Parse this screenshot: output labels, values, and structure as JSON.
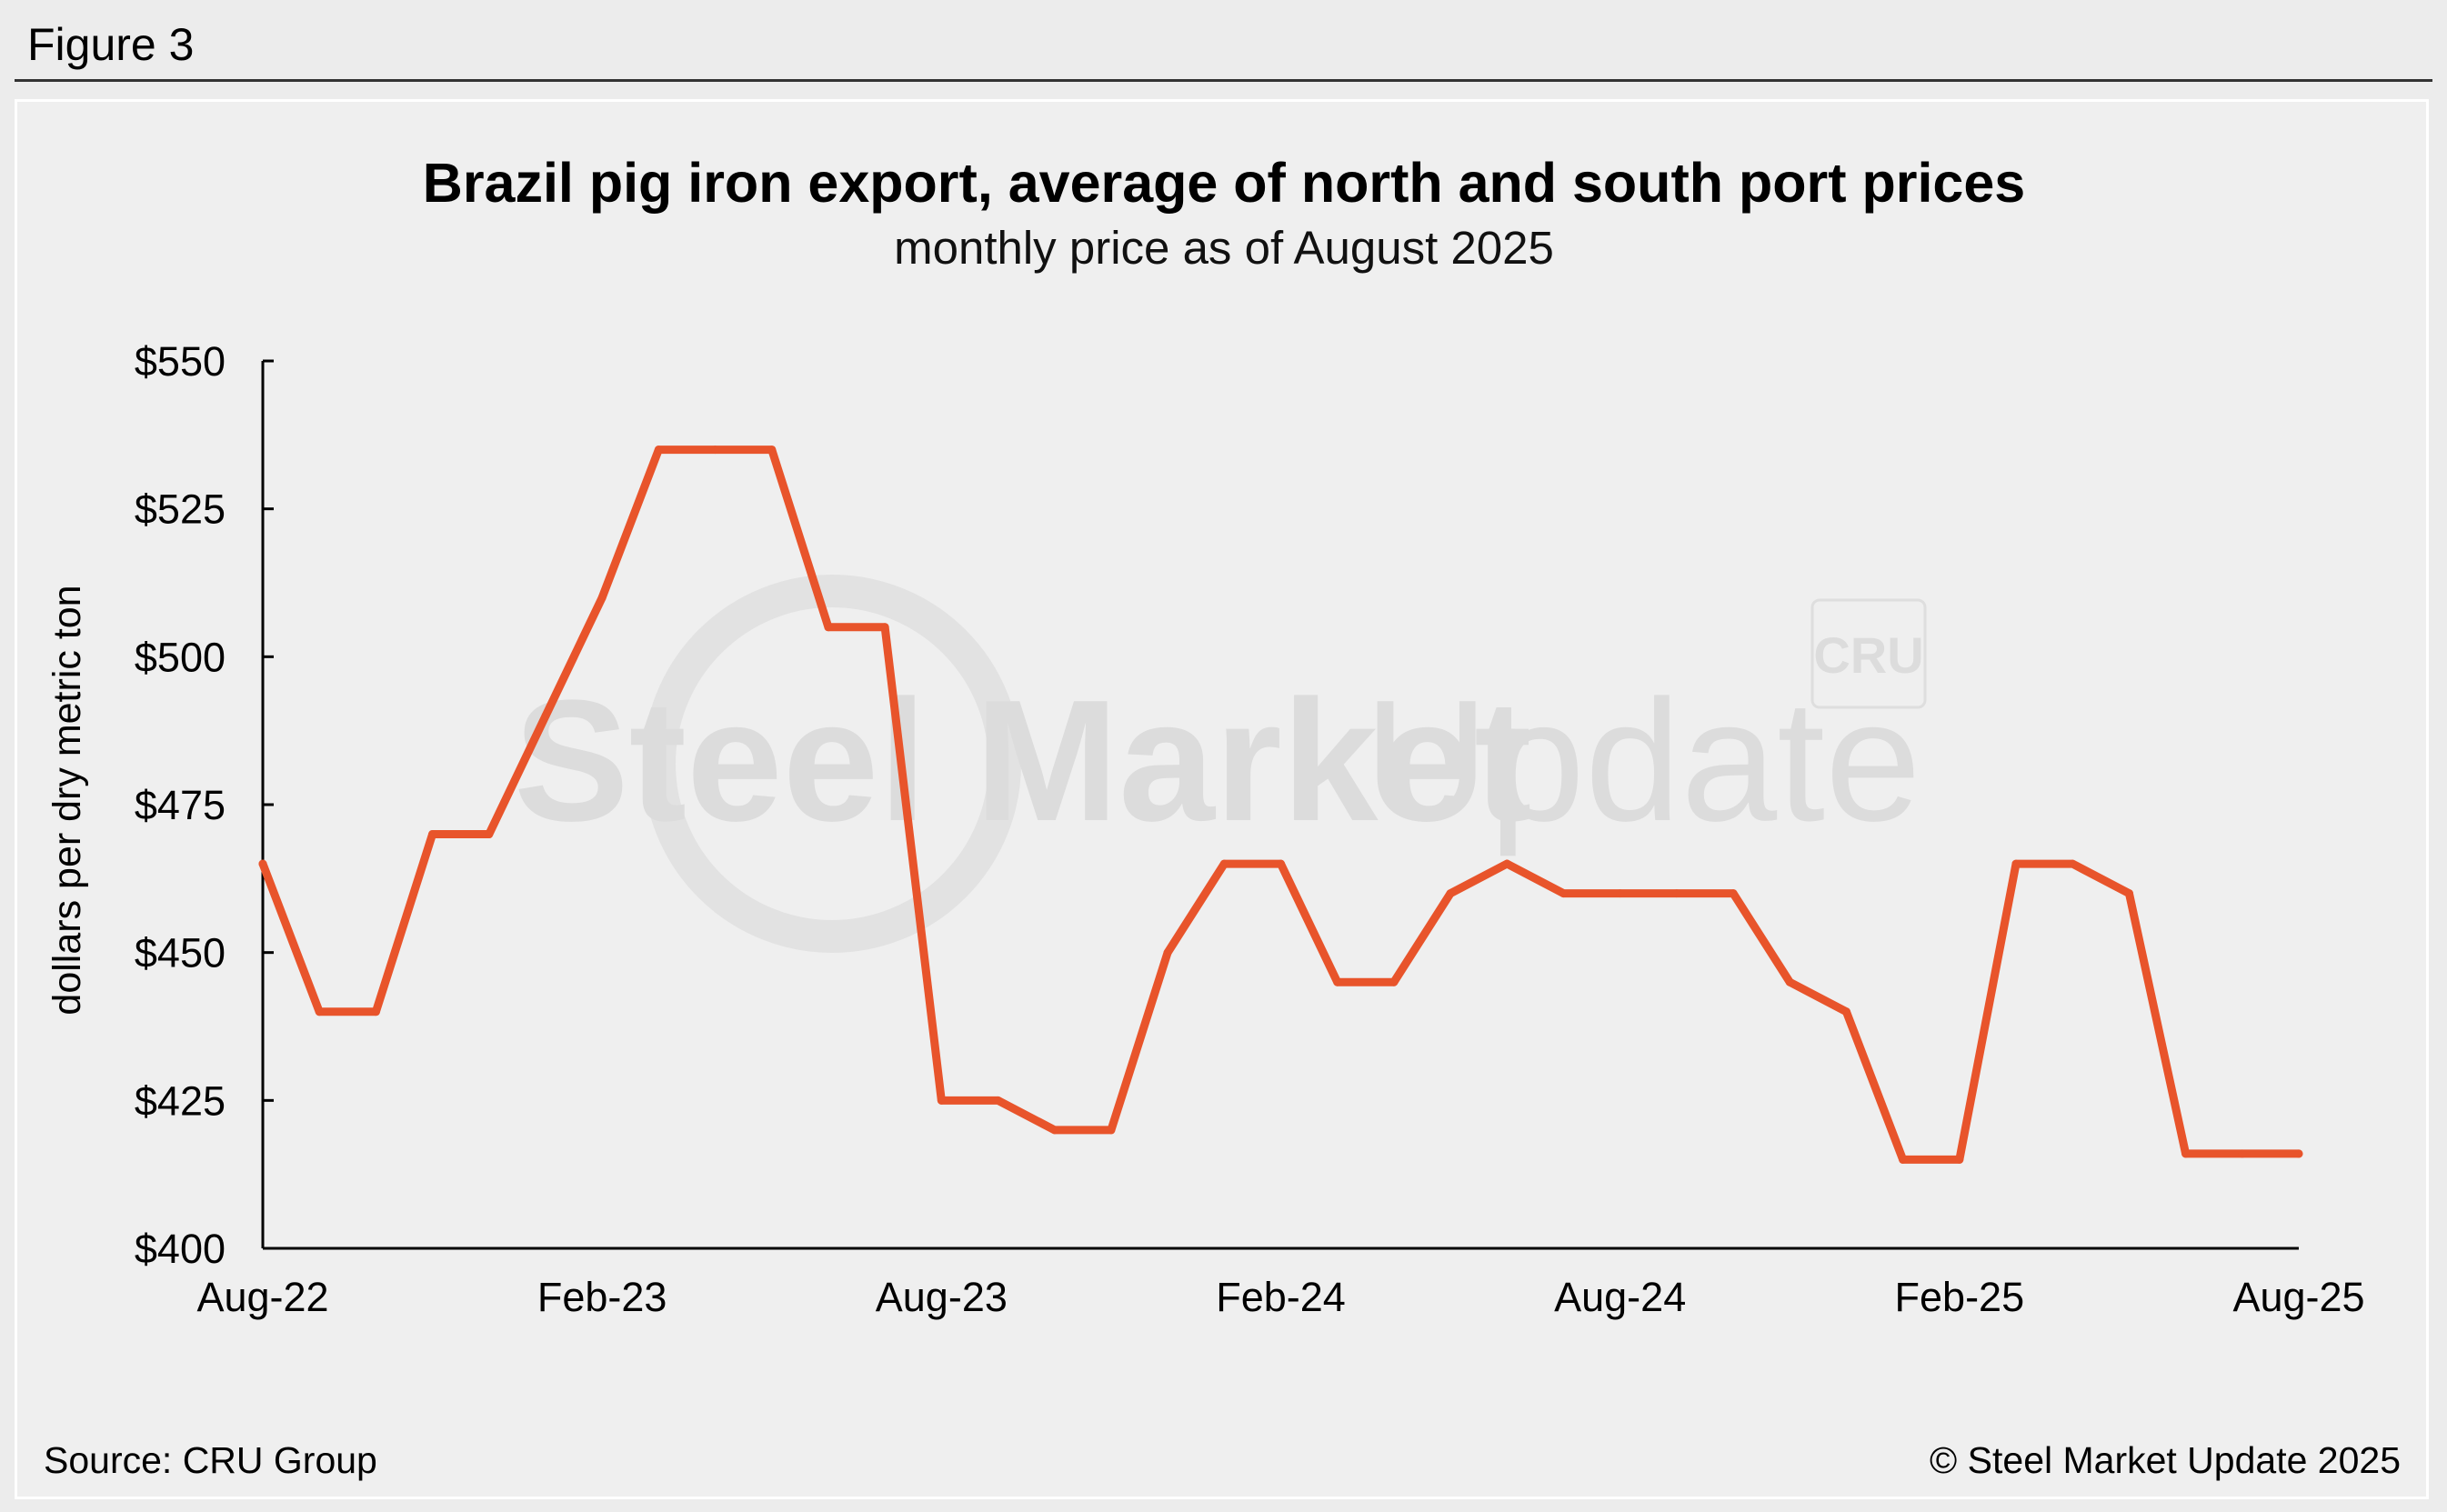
{
  "figure_label": "Figure 3",
  "footer": {
    "source": "Source: CRU Group",
    "copyright": "© Steel Market Update 2025"
  },
  "watermark": {
    "text_bold": "Steel Market",
    "text_light": "Update",
    "badge": "CRU"
  },
  "colors": {
    "line": "#e8542b",
    "background": "#efefef",
    "page": "#ececec"
  },
  "chart_data": {
    "type": "line",
    "title": "Brazil pig iron export, average of north and south port prices",
    "subtitle": "monthly price as of August 2025",
    "ylabel": "dollars per dry metric ton",
    "xlabel": "",
    "ylim": [
      400,
      550
    ],
    "y_ticks": [
      400,
      425,
      450,
      475,
      500,
      525,
      550
    ],
    "y_tick_labels": [
      "$400",
      "$425",
      "$450",
      "$475",
      "$500",
      "$525",
      "$550"
    ],
    "x_tick_labels": [
      "Aug-22",
      "Feb-23",
      "Aug-23",
      "Feb-24",
      "Aug-24",
      "Feb-25",
      "Aug-25"
    ],
    "x_tick_every": 6,
    "grid": false,
    "legend": "none",
    "categories": [
      "Aug-22",
      "Sep-22",
      "Oct-22",
      "Nov-22",
      "Dec-22",
      "Jan-23",
      "Feb-23",
      "Mar-23",
      "Apr-23",
      "May-23",
      "Jun-23",
      "Jul-23",
      "Aug-23",
      "Sep-23",
      "Oct-23",
      "Nov-23",
      "Dec-23",
      "Jan-24",
      "Feb-24",
      "Mar-24",
      "Apr-24",
      "May-24",
      "Jun-24",
      "Jul-24",
      "Aug-24",
      "Sep-24",
      "Oct-24",
      "Nov-24",
      "Dec-24",
      "Jan-25",
      "Feb-25",
      "Mar-25",
      "Apr-25",
      "May-25",
      "Jun-25",
      "Jul-25",
      "Aug-25"
    ],
    "series": [
      {
        "values": [
          465,
          440,
          440,
          470,
          470,
          490,
          510,
          535,
          535,
          535,
          505,
          505,
          425,
          425,
          420,
          420,
          450,
          465,
          465,
          445,
          445,
          460,
          465,
          460,
          460,
          460,
          460,
          445,
          440,
          415,
          415,
          465,
          465,
          460,
          416,
          416,
          416
        ]
      }
    ]
  }
}
